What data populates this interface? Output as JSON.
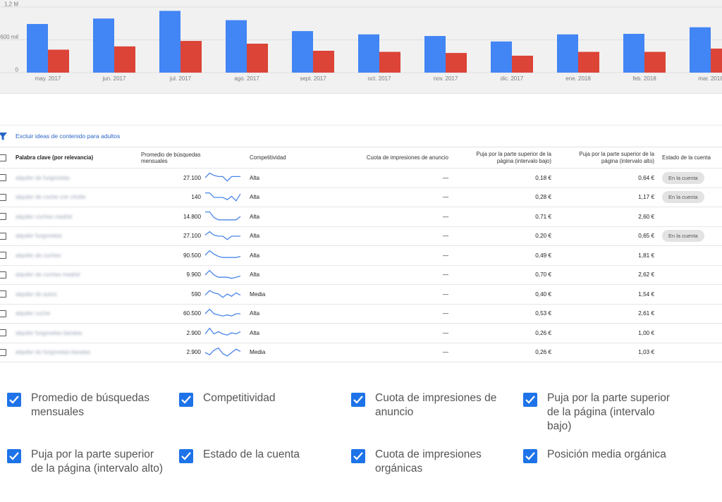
{
  "chart_data": {
    "type": "bar",
    "categories": [
      "may. 2017",
      "jun. 2017",
      "jul. 2017",
      "ago. 2017",
      "sept. 2017",
      "oct. 2017",
      "nov. 2017",
      "dic. 2017",
      "ene. 2018",
      "feb. 2018",
      "mar. 2018"
    ],
    "series": [
      {
        "values": [
          890000,
          990000,
          1130000,
          960000,
          760000,
          700000,
          670000,
          570000,
          700000,
          710000,
          830000
        ]
      },
      {
        "values": [
          420000,
          480000,
          580000,
          530000,
          400000,
          380000,
          360000,
          310000,
          380000,
          380000,
          440000
        ]
      }
    ],
    "colors": [
      "#4285f4",
      "#db4437"
    ],
    "ylim": [
      0,
      1200000
    ],
    "yticks": [
      {
        "value": 0,
        "label": "0"
      },
      {
        "value": 600000,
        "label": "600 mil"
      },
      {
        "value": 1200000,
        "label": "1,2 M"
      }
    ],
    "grid": true
  },
  "filter": {
    "icon": "filter-icon",
    "label": "Excluir ideas de contenido para adultos",
    "color": "#2a64c6"
  },
  "table": {
    "headers": {
      "keyword": "Palabra clave (por relevancia)",
      "avg": "Promedio de búsquedas mensuales",
      "competition": "Competitividad",
      "share": "Cuota de impresiones de anuncio",
      "bid_low_1": "Puja por la parte superior de la",
      "bid_low_2": "página (intervalo bajo)",
      "bid_high_1": "Puja por la parte superior de la",
      "bid_high_2": "página (intervalo alto)",
      "status": "Estado de la cuenta"
    },
    "rows": [
      {
        "keyword": "alquiler de furgonetas",
        "avg": "27.100",
        "trend": [
          0.5,
          0.9,
          0.7,
          0.6,
          0.6,
          0.2,
          0.6,
          0.6,
          0.6
        ],
        "competition": "Alta",
        "share": "—",
        "low": "0,18 €",
        "high": "0,64 €",
        "status": "En la cuenta"
      },
      {
        "keyword": "alquiler de coche con chofer",
        "avg": "140",
        "trend": [
          0.9,
          0.9,
          0.5,
          0.5,
          0.5,
          0.3,
          0.6,
          0.2,
          0.8
        ],
        "competition": "Alta",
        "share": "—",
        "low": "0,28 €",
        "high": "1,17 €",
        "status": "En la cuenta"
      },
      {
        "keyword": "alquiler coches madrid",
        "avg": "14.800",
        "trend": [
          0.9,
          0.9,
          0.4,
          0.2,
          0.2,
          0.2,
          0.2,
          0.2,
          0.5
        ],
        "competition": "Alta",
        "share": "—",
        "low": "0,71 €",
        "high": "2,60 €",
        "status": ""
      },
      {
        "keyword": "alquiler furgonetas",
        "avg": "27.100",
        "trend": [
          0.6,
          0.9,
          0.6,
          0.5,
          0.5,
          0.2,
          0.5,
          0.5,
          0.5
        ],
        "competition": "Alta",
        "share": "—",
        "low": "0,20 €",
        "high": "0,65 €",
        "status": "En la cuenta"
      },
      {
        "keyword": "alquiler de coches",
        "avg": "90.500",
        "trend": [
          0.5,
          0.9,
          0.6,
          0.4,
          0.3,
          0.3,
          0.3,
          0.3,
          0.4
        ],
        "competition": "Alta",
        "share": "—",
        "low": "0,49 €",
        "high": "1,81 €",
        "status": ""
      },
      {
        "keyword": "alquiler de coches madrid",
        "avg": "9.900",
        "trend": [
          0.5,
          0.9,
          0.5,
          0.3,
          0.3,
          0.3,
          0.2,
          0.3,
          0.4
        ],
        "competition": "Alta",
        "share": "—",
        "low": "0,70 €",
        "high": "2,62 €",
        "status": ""
      },
      {
        "keyword": "alquiler de autos",
        "avg": "590",
        "trend": [
          0.4,
          0.8,
          0.6,
          0.5,
          0.2,
          0.5,
          0.3,
          0.6,
          0.4
        ],
        "competition": "Media",
        "share": "—",
        "low": "0,40 €",
        "high": "1,54 €",
        "status": ""
      },
      {
        "keyword": "alquiler coche",
        "avg": "60.500",
        "trend": [
          0.5,
          0.9,
          0.5,
          0.4,
          0.3,
          0.4,
          0.3,
          0.5,
          0.5
        ],
        "competition": "Alta",
        "share": "—",
        "low": "0,53 €",
        "high": "2,61 €",
        "status": ""
      },
      {
        "keyword": "alquiler furgonetas baratas",
        "avg": "2.900",
        "trend": [
          0.4,
          0.9,
          0.4,
          0.6,
          0.4,
          0.3,
          0.5,
          0.4,
          0.6
        ],
        "competition": "Alta",
        "share": "—",
        "low": "0,26 €",
        "high": "1,00 €",
        "status": ""
      },
      {
        "keyword": "alquiler de furgonetas baratas",
        "avg": "2.900",
        "trend": [
          0.5,
          0.3,
          0.7,
          0.9,
          0.4,
          0.2,
          0.5,
          0.8,
          0.6
        ],
        "competition": "Media",
        "share": "—",
        "low": "0,26 €",
        "high": "1,03 €",
        "status": ""
      }
    ]
  },
  "column_options": [
    {
      "label": "Promedio de búsquedas mensuales",
      "checked": true
    },
    {
      "label": "Competitividad",
      "checked": true
    },
    {
      "label": "Cuota de impresiones de anuncio",
      "checked": true
    },
    {
      "label": "Puja por la parte superior de la página (intervalo bajo)",
      "checked": true
    },
    {
      "label": "Puja por la parte superior de la página (intervalo alto)",
      "checked": true
    },
    {
      "label": "Estado de la cuenta",
      "checked": true
    },
    {
      "label": "Cuota de impresiones orgánicas",
      "checked": true
    },
    {
      "label": "Posición media orgánica",
      "checked": true
    }
  ],
  "colors": {
    "accent": "#1e73e8",
    "trend_line": "#4a86e8"
  }
}
